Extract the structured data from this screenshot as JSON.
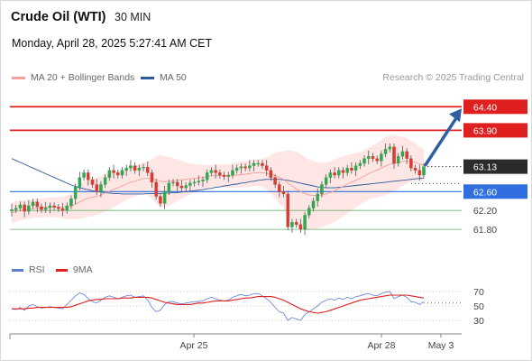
{
  "header": {
    "instrument": "Crude Oil (WTI)",
    "timeframe": "30 MIN",
    "datetime": "Monday, April 28, 2025 5:27:41 AM CET"
  },
  "legend": {
    "items": [
      {
        "label": "MA 20 + Bollinger Bands",
        "color": "#f4a09a"
      },
      {
        "label": "MA 50",
        "color": "#2e5a9c"
      }
    ],
    "copyright": "Research © 2025 Trading Central"
  },
  "rsi_legend": {
    "items": [
      {
        "label": "RSI",
        "color": "#5b7fd8"
      },
      {
        "label": "9MA",
        "color": "#e0201f"
      }
    ]
  },
  "colors": {
    "resistance": "#e0201f",
    "current": "#2b2b2b",
    "pivot": "#2f6fe0",
    "support": "#6ab46a",
    "candle_up": "#2fa84f",
    "candle_down": "#d93b30",
    "arrow": "#2f5fa0",
    "band_fill": "#fde3e1"
  },
  "chart_data": [
    {
      "type": "candlestick",
      "title": "Crude Oil (WTI)",
      "timeframe": "30 MIN",
      "ylim": [
        61.4,
        64.75
      ],
      "x_ticks": [
        "Apr 25",
        "Apr 28",
        "May 3"
      ],
      "levels": [
        {
          "value": 64.4,
          "label": "64.40",
          "kind": "resistance"
        },
        {
          "value": 63.9,
          "label": "63.90",
          "kind": "resistance"
        },
        {
          "value": 63.13,
          "label": "63.13",
          "kind": "current"
        },
        {
          "value": 62.6,
          "label": "62.60",
          "kind": "pivot"
        },
        {
          "value": 62.2,
          "label": "62.20",
          "kind": "support"
        },
        {
          "value": 61.8,
          "label": "61.80",
          "kind": "support"
        }
      ],
      "forecast_target": 64.4,
      "close": [
        62.22,
        62.25,
        62.32,
        62.18,
        62.3,
        62.38,
        62.28,
        62.22,
        62.26,
        62.3,
        62.27,
        62.24,
        62.2,
        62.3,
        62.45,
        62.7,
        62.9,
        63.0,
        62.85,
        62.75,
        62.6,
        62.75,
        62.9,
        63.05,
        63.0,
        62.95,
        63.05,
        63.1,
        63.15,
        63.05,
        63.1,
        63.12,
        63.0,
        62.8,
        62.5,
        62.35,
        62.6,
        62.78,
        62.8,
        62.72,
        62.68,
        62.73,
        62.78,
        62.8,
        62.82,
        62.85,
        63.0,
        63.05,
        63.0,
        62.95,
        62.92,
        62.95,
        63.05,
        63.1,
        63.13,
        63.1,
        63.15,
        63.2,
        63.2,
        63.15,
        63.05,
        62.9,
        62.75,
        62.6,
        62.55,
        61.85,
        61.95,
        61.9,
        61.8,
        62.1,
        62.25,
        62.4,
        62.55,
        62.75,
        62.9,
        63.0,
        62.95,
        63.05,
        63.0,
        63.1,
        63.05,
        63.15,
        63.2,
        63.3,
        63.35,
        63.3,
        63.25,
        63.4,
        63.5,
        63.55,
        63.2,
        63.35,
        63.45,
        63.3,
        63.1,
        63.05,
        62.95,
        63.13
      ],
      "ma20": [
        62.15,
        62.18,
        62.2,
        62.21,
        62.22,
        62.24,
        62.25,
        62.25,
        62.26,
        62.27,
        62.27,
        62.27,
        62.26,
        62.27,
        62.29,
        62.33,
        62.38,
        62.43,
        62.46,
        62.48,
        62.5,
        62.53,
        62.57,
        62.61,
        62.65,
        62.68,
        62.72,
        62.76,
        62.8,
        62.82,
        62.85,
        62.88,
        62.88,
        62.87,
        62.85,
        62.82,
        62.81,
        62.82,
        62.83,
        62.84,
        62.85,
        62.86,
        62.87,
        62.88,
        62.89,
        62.9,
        62.92,
        62.93,
        62.94,
        62.94,
        62.93,
        62.93,
        62.94,
        62.95,
        62.96,
        62.97,
        62.98,
        63.0,
        63.0,
        63.0,
        62.99,
        62.97,
        62.94,
        62.9,
        62.86,
        62.78,
        62.72,
        62.66,
        62.6,
        62.56,
        62.53,
        62.52,
        62.52,
        62.53,
        62.55,
        62.58,
        62.62,
        62.67,
        62.71,
        62.76,
        62.8,
        62.84,
        62.88,
        62.93,
        62.98,
        63.02,
        63.06,
        63.1,
        63.14,
        63.18,
        63.2,
        63.22,
        63.24,
        63.25,
        63.24,
        63.22,
        63.19,
        63.16
      ],
      "bb_width": [
        0.22,
        0.22,
        0.21,
        0.21,
        0.2,
        0.2,
        0.2,
        0.2,
        0.2,
        0.21,
        0.21,
        0.22,
        0.23,
        0.25,
        0.28,
        0.32,
        0.36,
        0.38,
        0.4,
        0.4,
        0.4,
        0.4,
        0.4,
        0.4,
        0.38,
        0.36,
        0.35,
        0.34,
        0.33,
        0.32,
        0.32,
        0.33,
        0.36,
        0.42,
        0.5,
        0.55,
        0.54,
        0.52,
        0.48,
        0.44,
        0.4,
        0.36,
        0.33,
        0.3,
        0.28,
        0.26,
        0.25,
        0.24,
        0.24,
        0.24,
        0.24,
        0.25,
        0.26,
        0.27,
        0.28,
        0.28,
        0.28,
        0.28,
        0.28,
        0.3,
        0.34,
        0.4,
        0.48,
        0.55,
        0.6,
        0.7,
        0.75,
        0.78,
        0.8,
        0.78,
        0.75,
        0.72,
        0.7,
        0.68,
        0.66,
        0.66,
        0.66,
        0.65,
        0.64,
        0.62,
        0.6,
        0.58,
        0.56,
        0.55,
        0.55,
        0.56,
        0.58,
        0.6,
        0.62,
        0.62,
        0.6,
        0.56,
        0.52,
        0.48,
        0.44,
        0.4,
        0.36,
        0.34
      ],
      "ma50": [
        63.3,
        63.26,
        63.22,
        63.18,
        63.14,
        63.1,
        63.06,
        63.02,
        62.98,
        62.94,
        62.9,
        62.86,
        62.82,
        62.78,
        62.74,
        62.71,
        62.68,
        62.66,
        62.64,
        62.62,
        62.6,
        62.59,
        62.58,
        62.57,
        62.56,
        62.56,
        62.55,
        62.55,
        62.55,
        62.55,
        62.55,
        62.55,
        62.56,
        62.56,
        62.56,
        62.56,
        62.57,
        62.57,
        62.58,
        62.58,
        62.59,
        62.6,
        62.61,
        62.62,
        62.63,
        62.64,
        62.66,
        62.67,
        62.69,
        62.7,
        62.72,
        62.73,
        62.75,
        62.76,
        62.78,
        62.79,
        62.81,
        62.82,
        62.84,
        62.85,
        62.86,
        62.86,
        62.86,
        62.86,
        62.85,
        62.84,
        62.82,
        62.8,
        62.78,
        62.76,
        62.74,
        62.72,
        62.7,
        62.69,
        62.68,
        62.68,
        62.68,
        62.69,
        62.7,
        62.71,
        62.72,
        62.73,
        62.74,
        62.75,
        62.76,
        62.77,
        62.78,
        62.79,
        62.8,
        62.81,
        62.82,
        62.83,
        62.84,
        62.85,
        62.86,
        62.87,
        62.88,
        62.89
      ]
    },
    {
      "type": "line",
      "title": "RSI",
      "ylim": [
        20,
        80
      ],
      "y_ticks": [
        70,
        50,
        30
      ],
      "series": [
        {
          "name": "RSI",
          "values": [
            46,
            45,
            48,
            44,
            50,
            52,
            49,
            47,
            48,
            49,
            48,
            47,
            46,
            52,
            58,
            64,
            68,
            66,
            60,
            56,
            54,
            58,
            62,
            64,
            62,
            60,
            62,
            64,
            65,
            62,
            63,
            64,
            58,
            48,
            42,
            44,
            52,
            56,
            56,
            54,
            53,
            54,
            55,
            56,
            56,
            57,
            60,
            62,
            60,
            58,
            57,
            58,
            62,
            64,
            66,
            64,
            65,
            67,
            67,
            64,
            60,
            55,
            48,
            42,
            40,
            30,
            34,
            32,
            30,
            38,
            42,
            46,
            50,
            55,
            58,
            60,
            58,
            61,
            59,
            62,
            60,
            63,
            64,
            66,
            67,
            65,
            64,
            67,
            69,
            70,
            60,
            63,
            65,
            62,
            56,
            55,
            52,
            56
          ]
        },
        {
          "name": "9MA",
          "values": [
            46,
            46,
            46,
            46,
            47,
            47,
            48,
            48,
            48,
            48,
            48,
            48,
            48,
            48,
            49,
            51,
            53,
            55,
            57,
            58,
            59,
            59,
            60,
            60,
            60,
            60,
            61,
            61,
            61,
            62,
            62,
            62,
            62,
            61,
            59,
            57,
            55,
            54,
            53,
            52,
            52,
            52,
            52,
            53,
            54,
            54,
            55,
            56,
            57,
            57,
            57,
            57,
            58,
            59,
            60,
            61,
            61,
            62,
            63,
            63,
            63,
            63,
            62,
            60,
            58,
            55,
            52,
            49,
            46,
            44,
            42,
            41,
            40,
            41,
            42,
            44,
            46,
            48,
            50,
            52,
            54,
            56,
            58,
            59,
            60,
            61,
            62,
            63,
            64,
            65,
            65,
            65,
            65,
            65,
            64,
            63,
            62,
            61
          ]
        }
      ]
    }
  ]
}
